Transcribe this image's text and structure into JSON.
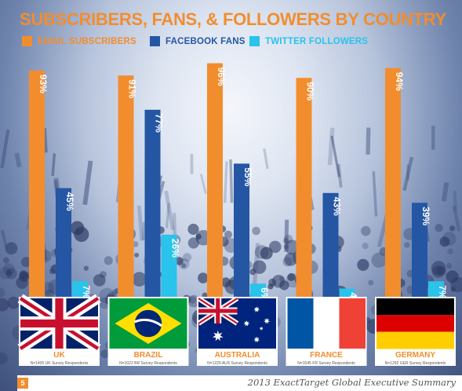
{
  "page": {
    "footer_text": "2013 ExactTarget Global Executive Summary",
    "page_number": "5"
  },
  "colors": {
    "email": "#f28d2e",
    "facebook": "#2456a4",
    "twitter": "#29c3ec",
    "title": "#f28d2e"
  },
  "chart_data": {
    "type": "bar",
    "title": "SUBSCRIBERS, FANS, & FOLLOWERS BY COUNTRY",
    "categories": [
      "UK",
      "BRAZIL",
      "AUSTRALIA",
      "FRANCE",
      "GERMANY"
    ],
    "respondents": [
      "N=1405 UK Survey Respondents",
      "N=1022 BR Survey Respondents",
      "N=1229 AUS Survey Respondents",
      "N=1545 FR Survey Respondents",
      "N=1292 GER Survey Respondents"
    ],
    "series": [
      {
        "name": "EMAIL SUBSCRIBERS",
        "values": [
          93,
          91,
          96,
          90,
          94
        ],
        "labels": [
          "93%",
          "91%",
          "96%",
          "90%",
          "94%"
        ]
      },
      {
        "name": "FACEBOOK FANS",
        "values": [
          45,
          77,
          55,
          43,
          39
        ],
        "labels": [
          "45%",
          "77%",
          "55%",
          "43%",
          "39%"
        ]
      },
      {
        "name": "TWITTER FOLLOWERS",
        "values": [
          7,
          26,
          6,
          4,
          7
        ],
        "labels": [
          "7%",
          "26%",
          "6%",
          "4%",
          "7%"
        ]
      }
    ],
    "ylim": [
      0,
      100
    ],
    "legend": "top",
    "grid": false,
    "flags": [
      "uk-flag-icon",
      "brazil-flag-icon",
      "australia-flag-icon",
      "france-flag-icon",
      "germany-flag-icon"
    ]
  }
}
